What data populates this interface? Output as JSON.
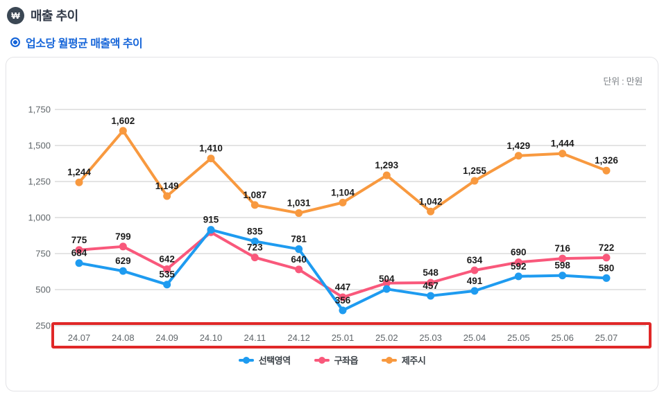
{
  "header": {
    "title": "매출 추이",
    "subtitle": "업소당 월평균 매출액 추이"
  },
  "chart_panel": {
    "unit_label": "단위 : 만원"
  },
  "chart_data": {
    "type": "line",
    "x": [
      "24.07",
      "24.08",
      "24.09",
      "24.10",
      "24.11",
      "24.12",
      "25.01",
      "25.02",
      "25.03",
      "25.04",
      "25.05",
      "25.06",
      "25.07"
    ],
    "series": [
      {
        "name": "선택영역",
        "color": "#1e9bf0",
        "values": [
          684,
          629,
          535,
          915,
          835,
          781,
          356,
          504,
          457,
          491,
          592,
          598,
          580
        ],
        "labels": [
          "684",
          "629",
          "535",
          "915",
          "835",
          "781",
          "356",
          "504",
          "457",
          "491",
          "592",
          "598",
          "580"
        ]
      },
      {
        "name": "구좌읍",
        "color": "#f9587b",
        "values": [
          775,
          799,
          642,
          898,
          723,
          640,
          447,
          545,
          548,
          634,
          690,
          716,
          722
        ],
        "labels": [
          "775",
          "799",
          "642",
          "",
          "723",
          "640",
          "447",
          "",
          "548",
          "634",
          "690",
          "716",
          "722"
        ]
      },
      {
        "name": "제주시",
        "color": "#f8993f",
        "values": [
          1244,
          1602,
          1149,
          1410,
          1087,
          1031,
          1104,
          1293,
          1042,
          1255,
          1429,
          1444,
          1326
        ],
        "labels": [
          "1,244",
          "1,602",
          "1,149",
          "1,410",
          "1,087",
          "1,031",
          "1,104",
          "1,293",
          "1,042",
          "1,255",
          "1,429",
          "1,444",
          "1,326"
        ]
      }
    ],
    "title": "",
    "xlabel": "",
    "ylabel": "",
    "ylim": [
      250,
      1750
    ],
    "yticks": [
      250,
      500,
      750,
      1000,
      1250,
      1500,
      1750
    ],
    "ytick_labels": [
      "250",
      "500",
      "750",
      "1,000",
      "1,250",
      "1,500",
      "1,750"
    ],
    "grid": true,
    "legend_position": "bottom",
    "annotation": {
      "type": "highlight-box",
      "target": "x-axis-label-row",
      "color": "#e02828"
    },
    "label_color": "#1c1c1c",
    "axis_text_color": "#5f6569",
    "grid_color": "#c9c9c9"
  }
}
